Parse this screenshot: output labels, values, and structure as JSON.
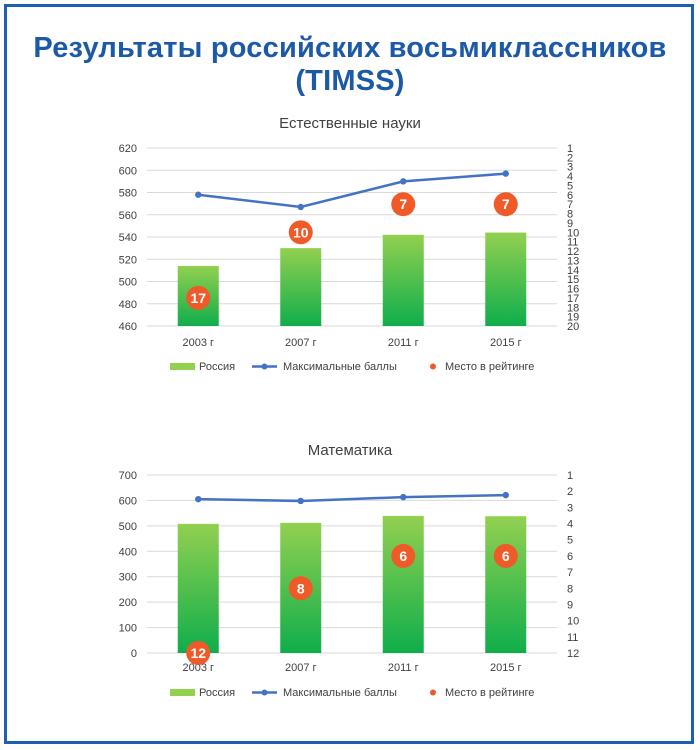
{
  "page": {
    "title": "Результаты российских восьмиклассников (TIMSS)",
    "colors": {
      "title": "#1c5aa8",
      "frame": "#1f5fb0",
      "bar_top": "#92d050",
      "bar_bottom": "#0fae4b",
      "line": "#4472c4",
      "rank": "#f05a28"
    }
  },
  "chart_data": [
    {
      "type": "bar+line",
      "title": "Естественные науки",
      "categories": [
        "2003 г",
        "2007 г",
        "2011 г",
        "2015 г"
      ],
      "ylim": [
        460,
        620
      ],
      "yticks": [
        460,
        480,
        500,
        520,
        540,
        560,
        580,
        600,
        620
      ],
      "y2lim": [
        1,
        20
      ],
      "y2ticks": [
        1,
        2,
        3,
        4,
        5,
        6,
        7,
        8,
        9,
        10,
        11,
        12,
        13,
        14,
        15,
        16,
        17,
        18,
        19,
        20
      ],
      "series": [
        {
          "name": "Россия",
          "kind": "bar",
          "axis": "left",
          "values": [
            514,
            530,
            542,
            544
          ]
        },
        {
          "name": "Максимальные баллы",
          "kind": "line",
          "axis": "left",
          "values": [
            578,
            567,
            590,
            597
          ]
        },
        {
          "name": "Место в рейтинге",
          "kind": "marker",
          "axis": "right",
          "values": [
            17,
            10,
            7,
            7
          ]
        }
      ],
      "legend": [
        "Россия",
        "Максимальные баллы",
        "Место в рейтинге"
      ],
      "legend_position": "bottom"
    },
    {
      "type": "bar+line",
      "title": "Математика",
      "categories": [
        "2003 г",
        "2007 г",
        "2011 г",
        "2015 г"
      ],
      "ylim": [
        0,
        700
      ],
      "yticks": [
        0,
        100,
        200,
        300,
        400,
        500,
        600,
        700
      ],
      "y2lim": [
        1,
        12
      ],
      "y2ticks": [
        1,
        2,
        3,
        4,
        5,
        6,
        7,
        8,
        9,
        10,
        11,
        12
      ],
      "series": [
        {
          "name": "Россия",
          "kind": "bar",
          "axis": "left",
          "values": [
            508,
            512,
            539,
            538
          ]
        },
        {
          "name": "Максимальные баллы",
          "kind": "line",
          "axis": "left",
          "values": [
            605,
            598,
            613,
            621
          ]
        },
        {
          "name": "Место в рейтинге",
          "kind": "marker",
          "axis": "right",
          "values": [
            12,
            8,
            6,
            6
          ]
        }
      ],
      "legend": [
        "Россия",
        "Максимальные баллы",
        "Место в рейтинге"
      ],
      "legend_position": "bottom"
    }
  ]
}
